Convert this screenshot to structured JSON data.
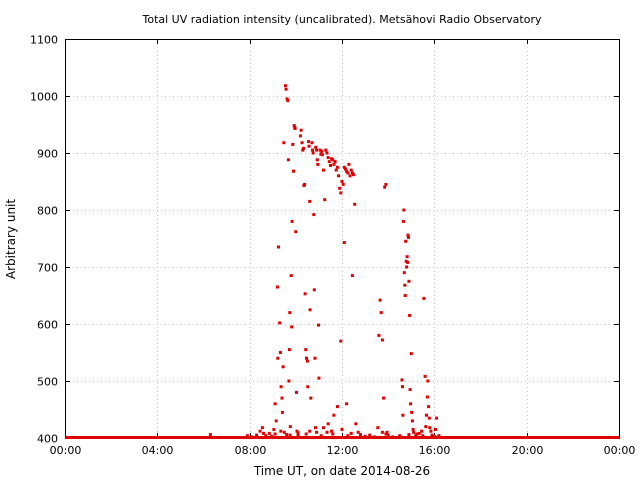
{
  "chart_data": {
    "type": "scatter",
    "title": "Total UV radiation intensity (uncalibrated). Metsähovi Radio Observatory",
    "xlabel": "Time UT, on date 2014-08-26",
    "ylabel": "Arbitrary unit",
    "xlim": [
      0,
      24
    ],
    "ylim": [
      400,
      1100
    ],
    "xticks": [
      0,
      4,
      8,
      12,
      16,
      20,
      24
    ],
    "xtick_labels": [
      "00:00",
      "04:00",
      "08:00",
      "12:00",
      "16:00",
      "20:00",
      "00:00"
    ],
    "yticks": [
      400,
      500,
      600,
      700,
      800,
      900,
      1000,
      1100
    ],
    "ytick_labels": [
      "400",
      "500",
      "600",
      "700",
      "800",
      "900",
      "1000",
      "1100"
    ],
    "grid": true,
    "color": "#e00000",
    "baseline": {
      "y": 400,
      "x_from": 0,
      "x_to": 24
    },
    "points": [
      [
        6.3,
        406
      ],
      [
        7.9,
        404
      ],
      [
        8.1,
        402
      ],
      [
        8.3,
        405
      ],
      [
        8.45,
        412
      ],
      [
        8.55,
        418
      ],
      [
        8.6,
        408
      ],
      [
        8.7,
        404
      ],
      [
        8.85,
        408
      ],
      [
        8.95,
        403
      ],
      [
        9.05,
        415
      ],
      [
        9.1,
        460
      ],
      [
        9.15,
        430
      ],
      [
        9.2,
        665
      ],
      [
        9.22,
        540
      ],
      [
        9.25,
        735
      ],
      [
        9.3,
        602
      ],
      [
        9.33,
        550
      ],
      [
        9.36,
        490
      ],
      [
        9.4,
        470
      ],
      [
        9.42,
        445
      ],
      [
        9.45,
        525
      ],
      [
        9.48,
        918
      ],
      [
        9.5,
        410
      ],
      [
        9.55,
        1018
      ],
      [
        9.58,
        1012
      ],
      [
        9.62,
        995
      ],
      [
        9.65,
        992
      ],
      [
        9.68,
        888
      ],
      [
        9.7,
        500
      ],
      [
        9.72,
        555
      ],
      [
        9.74,
        620
      ],
      [
        9.76,
        420
      ],
      [
        9.8,
        685
      ],
      [
        9.82,
        595
      ],
      [
        9.84,
        780
      ],
      [
        9.87,
        915
      ],
      [
        9.9,
        868
      ],
      [
        9.93,
        948
      ],
      [
        9.95,
        945
      ],
      [
        9.97,
        943
      ],
      [
        10.0,
        762
      ],
      [
        10.03,
        480
      ],
      [
        10.05,
        412
      ],
      [
        10.1,
        405
      ],
      [
        10.2,
        930
      ],
      [
        10.23,
        940
      ],
      [
        10.27,
        918
      ],
      [
        10.3,
        905
      ],
      [
        10.33,
        908
      ],
      [
        10.35,
        843
      ],
      [
        10.38,
        845
      ],
      [
        10.4,
        653
      ],
      [
        10.43,
        555
      ],
      [
        10.46,
        540
      ],
      [
        10.5,
        535
      ],
      [
        10.52,
        490
      ],
      [
        10.55,
        920
      ],
      [
        10.57,
        912
      ],
      [
        10.6,
        815
      ],
      [
        10.62,
        625
      ],
      [
        10.65,
        470
      ],
      [
        10.7,
        918
      ],
      [
        10.72,
        905
      ],
      [
        10.75,
        900
      ],
      [
        10.78,
        792
      ],
      [
        10.8,
        660
      ],
      [
        10.83,
        540
      ],
      [
        10.86,
        910
      ],
      [
        10.9,
        905
      ],
      [
        10.93,
        888
      ],
      [
        10.95,
        880
      ],
      [
        10.98,
        598
      ],
      [
        11.0,
        505
      ],
      [
        11.05,
        905
      ],
      [
        11.08,
        898
      ],
      [
        11.12,
        903
      ],
      [
        11.15,
        897
      ],
      [
        11.2,
        870
      ],
      [
        11.25,
        818
      ],
      [
        11.3,
        905
      ],
      [
        11.35,
        900
      ],
      [
        11.4,
        892
      ],
      [
        11.45,
        885
      ],
      [
        11.5,
        878
      ],
      [
        11.55,
        890
      ],
      [
        11.6,
        888
      ],
      [
        11.65,
        880
      ],
      [
        11.7,
        885
      ],
      [
        11.75,
        870
      ],
      [
        11.8,
        875
      ],
      [
        11.85,
        860
      ],
      [
        11.9,
        838
      ],
      [
        11.95,
        830
      ],
      [
        12.0,
        850
      ],
      [
        12.05,
        845
      ],
      [
        12.1,
        875
      ],
      [
        12.15,
        872
      ],
      [
        12.2,
        868
      ],
      [
        12.25,
        865
      ],
      [
        12.3,
        880
      ],
      [
        12.35,
        860
      ],
      [
        12.4,
        870
      ],
      [
        12.45,
        865
      ],
      [
        12.5,
        862
      ],
      [
        12.1,
        743
      ],
      [
        12.45,
        685
      ],
      [
        11.95,
        570
      ],
      [
        12.55,
        810
      ],
      [
        12.2,
        460
      ],
      [
        11.8,
        455
      ],
      [
        11.65,
        440
      ],
      [
        11.4,
        425
      ],
      [
        11.2,
        418
      ],
      [
        10.9,
        410
      ],
      [
        12.6,
        425
      ],
      [
        12.7,
        410
      ],
      [
        12.8,
        406
      ],
      [
        13.0,
        403
      ],
      [
        13.2,
        405
      ],
      [
        13.4,
        402
      ],
      [
        13.55,
        418
      ],
      [
        13.6,
        580
      ],
      [
        13.65,
        642
      ],
      [
        13.7,
        620
      ],
      [
        13.75,
        572
      ],
      [
        13.8,
        470
      ],
      [
        13.85,
        840
      ],
      [
        13.9,
        845
      ],
      [
        13.95,
        410
      ],
      [
        14.0,
        405
      ],
      [
        14.2,
        402
      ],
      [
        14.5,
        404
      ],
      [
        14.6,
        502
      ],
      [
        14.62,
        490
      ],
      [
        14.64,
        440
      ],
      [
        14.66,
        780
      ],
      [
        14.68,
        800
      ],
      [
        14.7,
        690
      ],
      [
        14.72,
        668
      ],
      [
        14.74,
        650
      ],
      [
        14.76,
        745
      ],
      [
        14.78,
        710
      ],
      [
        14.8,
        700
      ],
      [
        14.82,
        718
      ],
      [
        14.84,
        708
      ],
      [
        14.86,
        756
      ],
      [
        14.88,
        752
      ],
      [
        14.9,
        675
      ],
      [
        14.93,
        615
      ],
      [
        14.95,
        485
      ],
      [
        14.97,
        460
      ],
      [
        15.0,
        548
      ],
      [
        15.02,
        445
      ],
      [
        15.05,
        430
      ],
      [
        15.08,
        415
      ],
      [
        15.1,
        410
      ],
      [
        15.2,
        405
      ],
      [
        15.35,
        408
      ],
      [
        15.45,
        412
      ],
      [
        15.5,
        404
      ],
      [
        15.55,
        645
      ],
      [
        15.6,
        508
      ],
      [
        15.63,
        420
      ],
      [
        15.66,
        440
      ],
      [
        15.7,
        472
      ],
      [
        15.72,
        500
      ],
      [
        15.75,
        455
      ],
      [
        15.78,
        435
      ],
      [
        15.8,
        418
      ],
      [
        15.85,
        412
      ],
      [
        15.9,
        405
      ],
      [
        16.0,
        403
      ],
      [
        16.05,
        415
      ],
      [
        16.1,
        435
      ],
      [
        16.2,
        404
      ],
      [
        9.1,
        407
      ],
      [
        9.6,
        406
      ],
      [
        10.1,
        409
      ],
      [
        10.6,
        412
      ],
      [
        11.1,
        404
      ],
      [
        11.6,
        407
      ],
      [
        12.4,
        408
      ],
      [
        13.9,
        407
      ],
      [
        14.9,
        406
      ],
      [
        9.35,
        412
      ],
      [
        9.75,
        405
      ],
      [
        10.45,
        407
      ],
      [
        10.85,
        418
      ],
      [
        11.35,
        410
      ],
      [
        11.55,
        412
      ],
      [
        12.0,
        415
      ],
      [
        12.25,
        404
      ],
      [
        13.75,
        410
      ],
      [
        15.25,
        407
      ]
    ]
  }
}
